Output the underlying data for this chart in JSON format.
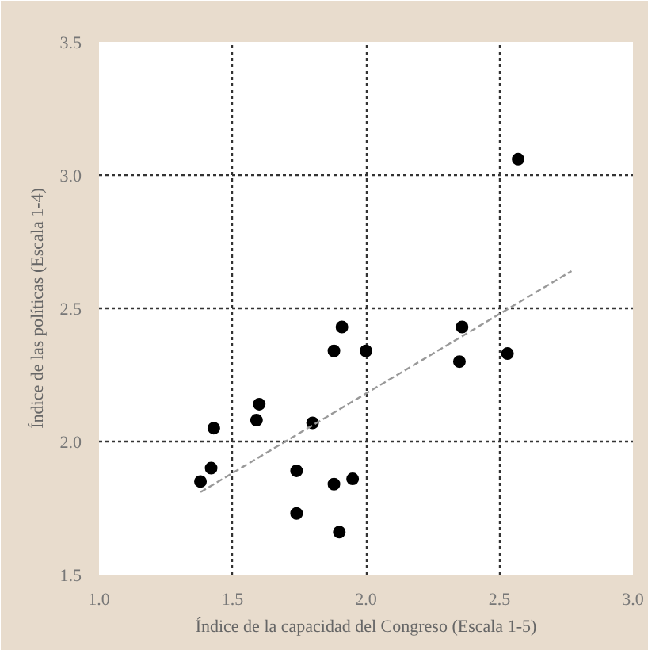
{
  "chart_data": {
    "type": "scatter",
    "xlabel": "Índice de la capacidad del Congreso (Escala 1-5)",
    "ylabel": "Índice de las políticas (Escala 1-4)",
    "xlim": [
      1.0,
      3.0
    ],
    "ylim": [
      1.5,
      3.5
    ],
    "xticks": [
      {
        "value": 1.0,
        "label": "1.0"
      },
      1.5,
      {
        "value": 2.0,
        "label": "2.0"
      },
      2.5,
      {
        "value": 3.0,
        "label": "3.0"
      }
    ],
    "yticks": [
      1.5,
      {
        "value": 2.0,
        "label": "2.0"
      },
      2.5,
      {
        "value": 3.0,
        "label": "3.0"
      },
      3.5
    ],
    "grid": true,
    "marker": "circle",
    "series": [
      {
        "color": "#000000",
        "x": [
          2.57,
          1.91,
          1.88,
          2.0,
          2.36,
          2.35,
          2.53,
          1.6,
          1.59,
          1.43,
          1.8,
          1.42,
          1.38,
          1.74,
          1.88,
          1.95,
          1.74,
          1.9
        ],
        "values": [
          3.06,
          2.43,
          2.34,
          2.34,
          2.43,
          2.3,
          2.33,
          2.14,
          2.08,
          2.05,
          2.07,
          1.9,
          1.85,
          1.89,
          1.84,
          1.86,
          1.73,
          1.66
        ]
      },
      {
        "type": "line",
        "color": "#999999",
        "line_style": "dashed",
        "marker": "none",
        "x": [
          1.38,
          2.77
        ],
        "values": [
          1.81,
          2.64
        ]
      }
    ]
  }
}
